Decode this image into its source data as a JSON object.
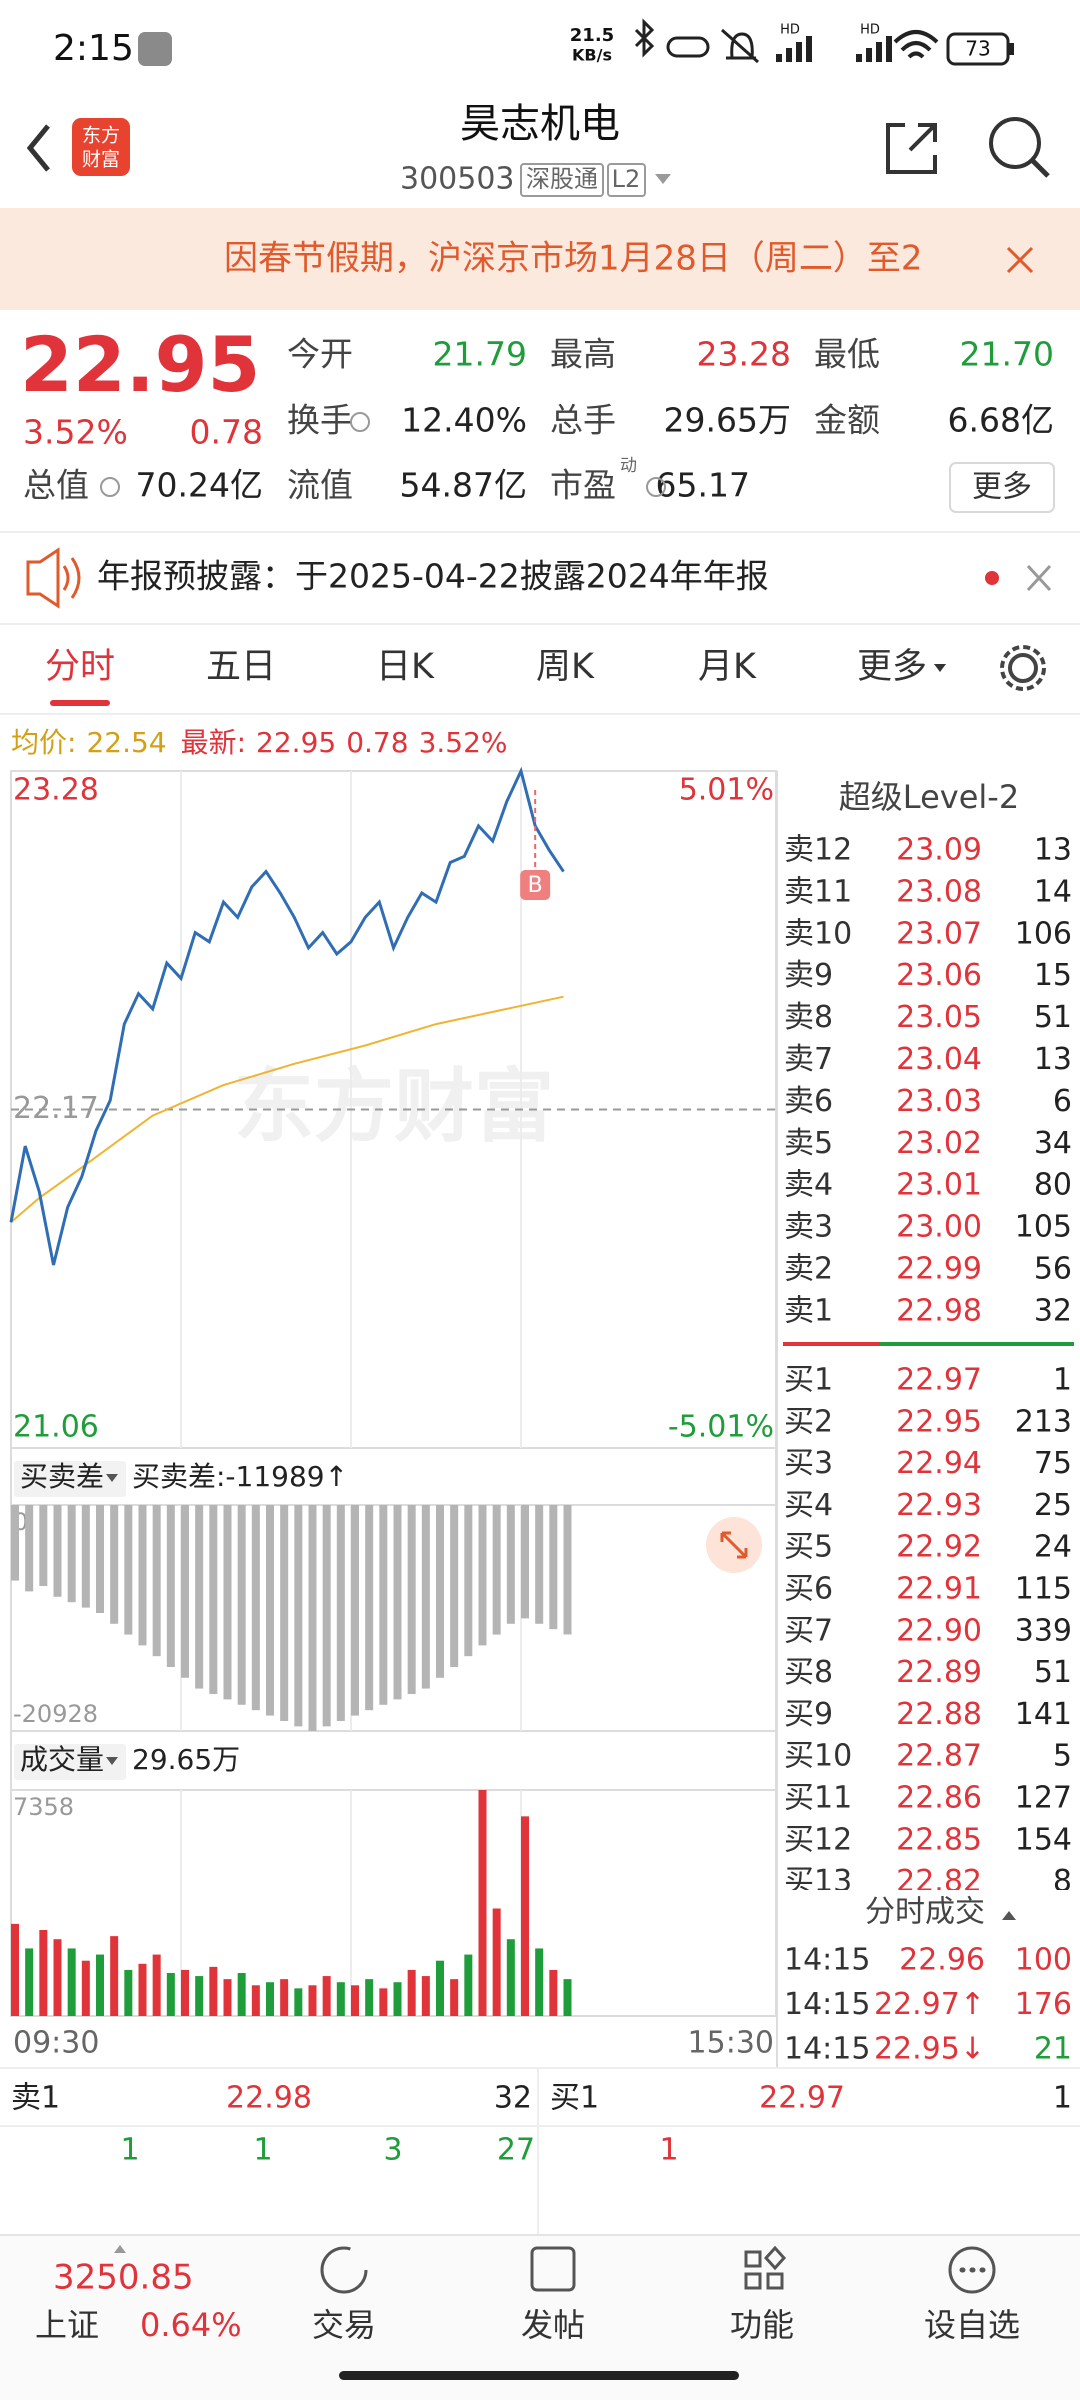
{
  "status_bar": {
    "time": "2:15",
    "net_speed": [
      "21.5",
      "KB/s"
    ],
    "signal": [
      "HD",
      "HD"
    ],
    "battery": "73"
  },
  "header": {
    "logo": [
      "东方",
      "财富"
    ],
    "title": "昊志机电",
    "code": "300503",
    "tags": [
      "深股通",
      "L2"
    ]
  },
  "banner": {
    "text": "因春节假期，沪深京市场1月28日（周二）至2"
  },
  "quote": {
    "price": "22.95",
    "change_pct": "3.52%",
    "change": "0.78",
    "fields": [
      {
        "label": "今开",
        "value": "21.79",
        "color": "#1f9d3a"
      },
      {
        "label": "最高",
        "value": "23.28",
        "color": "#e0333a"
      },
      {
        "label": "最低",
        "value": "21.70",
        "color": "#1f9d3a"
      },
      {
        "label": "换手",
        "value": "12.40%",
        "color": "#222222"
      },
      {
        "label": "总手",
        "value": "29.65万",
        "color": "#222222"
      },
      {
        "label": "金额",
        "value": "6.68亿",
        "color": "#222222"
      },
      {
        "label": "总值",
        "value": "70.24亿",
        "color": "#222222"
      },
      {
        "label": "流值",
        "value": "54.87亿",
        "color": "#222222"
      },
      {
        "label": "市盈",
        "value": "65.17",
        "color": "#222222"
      }
    ],
    "pe_mark": "动",
    "more_button": "更多"
  },
  "notice": {
    "text": "年报预披露：于2025-04-22披露2024年年报"
  },
  "tabs": [
    "分时",
    "五日",
    "日K",
    "周K",
    "月K",
    "更多"
  ],
  "info_line": {
    "avg_label": "均价:",
    "avg": "22.54",
    "last_label": "最新:",
    "last": "22.95",
    "change": "0.78",
    "change_pct": "3.52%"
  },
  "watermark": "东方财富",
  "chart_data": [
    {
      "type": "line",
      "xlim": [
        0,
        270
      ],
      "xticks": [
        {
          "value": 0,
          "label": "09:30"
        },
        {
          "value": 270,
          "label": "15:30"
        }
      ],
      "ylim": [
        21.06,
        23.28
      ],
      "yticks": [
        23.28,
        22.17,
        21.06
      ],
      "y2lim": [
        -5.01,
        5.01
      ],
      "y2ticks": [
        {
          "value": 5.01,
          "label": "5.01%"
        },
        {
          "value": -5.01,
          "label": "-5.01%"
        }
      ],
      "grid": true,
      "series": [
        {
          "color": "#2f6db5",
          "x": [
            0,
            5,
            10,
            15,
            20,
            25,
            30,
            35,
            40,
            45,
            50,
            55,
            60,
            65,
            70,
            75,
            80,
            85,
            90,
            95,
            100,
            105,
            110,
            115,
            120,
            125,
            130,
            135,
            140,
            145,
            150,
            155,
            160,
            165,
            170,
            175,
            180,
            185,
            190,
            195
          ],
          "values": [
            21.8,
            22.05,
            21.9,
            21.66,
            21.85,
            21.95,
            22.1,
            22.2,
            22.45,
            22.55,
            22.5,
            22.65,
            22.6,
            22.75,
            22.72,
            22.85,
            22.8,
            22.9,
            22.95,
            22.88,
            22.8,
            22.7,
            22.75,
            22.68,
            22.72,
            22.8,
            22.85,
            22.7,
            22.8,
            22.88,
            22.85,
            22.98,
            23.0,
            23.1,
            23.05,
            23.18,
            23.28,
            23.1,
            23.02,
            22.95
          ]
        },
        {
          "color": "#f0b432",
          "x": [
            0,
            10,
            25,
            50,
            75,
            100,
            125,
            150,
            175,
            195
          ],
          "values": [
            21.8,
            21.88,
            21.98,
            22.15,
            22.25,
            22.32,
            22.38,
            22.45,
            22.5,
            22.54
          ]
        }
      ],
      "annotation": {
        "text": "B",
        "x": 185
      }
    },
    {
      "type": "bar",
      "title": "买卖差",
      "subtitle": "买卖差:-11989↑",
      "xlim": [
        0,
        270
      ],
      "ylim": [
        -20928,
        0
      ],
      "yticks": [
        0,
        -20928
      ],
      "color": "#b4b4b4",
      "x": [
        0,
        5,
        10,
        15,
        20,
        25,
        30,
        35,
        40,
        45,
        50,
        55,
        60,
        65,
        70,
        75,
        80,
        85,
        90,
        95,
        100,
        105,
        110,
        115,
        120,
        125,
        130,
        135,
        140,
        145,
        150,
        155,
        160,
        165,
        170,
        175,
        180,
        185,
        190,
        195
      ],
      "values": [
        -7000,
        -8000,
        -7500,
        -8500,
        -9000,
        -9500,
        -10000,
        -11000,
        -12000,
        -13000,
        -14000,
        -15000,
        -16000,
        -17000,
        -17500,
        -18000,
        -18500,
        -19000,
        -19500,
        -20000,
        -20500,
        -20928,
        -20500,
        -20000,
        -19500,
        -19000,
        -18500,
        -18000,
        -17500,
        -17000,
        -16000,
        -15000,
        -14000,
        -13000,
        -12000,
        -11000,
        -10500,
        -11000,
        -11500,
        -11989
      ]
    },
    {
      "type": "bar",
      "title": "成交量",
      "subtitle": "29.65万",
      "xlim": [
        0,
        270
      ],
      "ylim": [
        0,
        7358
      ],
      "yticks": [
        7358
      ],
      "x": [
        0,
        5,
        10,
        15,
        20,
        25,
        30,
        35,
        40,
        45,
        50,
        55,
        60,
        65,
        70,
        75,
        80,
        85,
        90,
        95,
        100,
        105,
        110,
        115,
        120,
        125,
        130,
        135,
        140,
        145,
        150,
        155,
        160,
        165,
        170,
        175,
        180,
        185,
        190,
        195
      ],
      "values": [
        3000,
        2200,
        2800,
        2500,
        2200,
        1800,
        2000,
        2600,
        1500,
        1700,
        2000,
        1400,
        1500,
        1300,
        1600,
        1200,
        1400,
        1000,
        1100,
        1200,
        900,
        1000,
        1300,
        1100,
        1000,
        1200,
        900,
        1100,
        1500,
        1300,
        1800,
        1200,
        2000,
        7358,
        3500,
        2500,
        6500,
        2200,
        1500,
        1200
      ],
      "colors": [
        "#e0333a",
        "#1f9d3a",
        "#e0333a",
        "#e0333a",
        "#1f9d3a",
        "#e0333a",
        "#1f9d3a",
        "#e0333a",
        "#1f9d3a",
        "#e0333a",
        "#e0333a",
        "#1f9d3a",
        "#e0333a",
        "#1f9d3a",
        "#e0333a",
        "#e0333a",
        "#1f9d3a",
        "#e0333a",
        "#1f9d3a",
        "#e0333a",
        "#1f9d3a",
        "#e0333a",
        "#e0333a",
        "#1f9d3a",
        "#e0333a",
        "#1f9d3a",
        "#e0333a",
        "#1f9d3a",
        "#e0333a",
        "#e0333a",
        "#1f9d3a",
        "#e0333a",
        "#1f9d3a",
        "#e0333a",
        "#e0333a",
        "#1f9d3a",
        "#e0333a",
        "#1f9d3a",
        "#e0333a",
        "#1f9d3a"
      ]
    }
  ],
  "level2": {
    "title": "超级Level-2",
    "asks": [
      [
        "卖12",
        "23.09",
        "13"
      ],
      [
        "卖11",
        "23.08",
        "14"
      ],
      [
        "卖10",
        "23.07",
        "106"
      ],
      [
        "卖9",
        "23.06",
        "15"
      ],
      [
        "卖8",
        "23.05",
        "51"
      ],
      [
        "卖7",
        "23.04",
        "13"
      ],
      [
        "卖6",
        "23.03",
        "6"
      ],
      [
        "卖5",
        "23.02",
        "34"
      ],
      [
        "卖4",
        "23.01",
        "80"
      ],
      [
        "卖3",
        "23.00",
        "105"
      ],
      [
        "卖2",
        "22.99",
        "56"
      ],
      [
        "卖1",
        "22.98",
        "32"
      ]
    ],
    "bids": [
      [
        "买1",
        "22.97",
        "1"
      ],
      [
        "买2",
        "22.95",
        "213"
      ],
      [
        "买3",
        "22.94",
        "75"
      ],
      [
        "买4",
        "22.93",
        "25"
      ],
      [
        "买5",
        "22.92",
        "24"
      ],
      [
        "买6",
        "22.91",
        "115"
      ],
      [
        "买7",
        "22.90",
        "339"
      ],
      [
        "买8",
        "22.89",
        "51"
      ],
      [
        "买9",
        "22.88",
        "141"
      ],
      [
        "买10",
        "22.87",
        "5"
      ],
      [
        "买11",
        "22.86",
        "127"
      ],
      [
        "买12",
        "22.85",
        "154"
      ],
      [
        "买13",
        "22.82",
        "8"
      ]
    ]
  },
  "trades": {
    "title": "分时成交",
    "rows": [
      {
        "time": "14:15",
        "price": "22.96",
        "volume": "100",
        "volume_color": "#e0333a"
      },
      {
        "time": "14:15",
        "price": "22.97↑",
        "volume": "176",
        "volume_color": "#e0333a"
      },
      {
        "time": "14:15",
        "price": "22.95↓",
        "volume": "21",
        "volume_color": "#1f9d3a"
      }
    ]
  },
  "bottom": {
    "ask": {
      "label": "卖1",
      "price": "22.98",
      "qty": "32"
    },
    "bid": {
      "label": "买1",
      "price": "22.97",
      "qty": "1"
    },
    "ask_counts": [
      "1",
      "1",
      "3",
      "27"
    ],
    "bid_counts": [
      "1"
    ]
  },
  "nav": {
    "index_value": "3250.85",
    "index_name": "上证",
    "index_pct": "0.64%",
    "items": [
      "交易",
      "发帖",
      "功能",
      "设自选"
    ]
  }
}
